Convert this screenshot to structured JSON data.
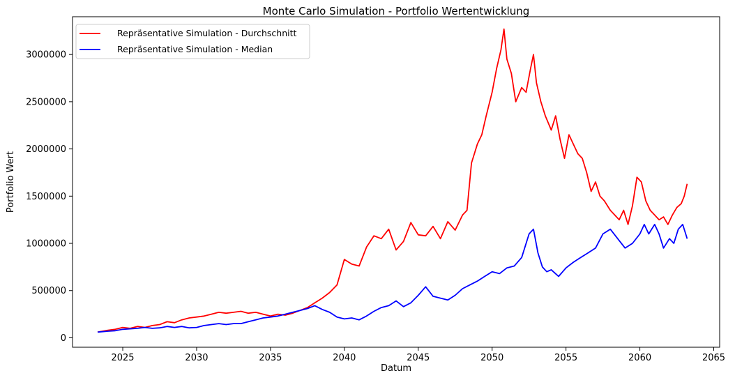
{
  "chart_data": {
    "type": "line",
    "title": "Monte Carlo Simulation - Portfolio Wertentwicklung",
    "xlabel": "Datum",
    "ylabel": "Portfolio Wert",
    "xlim": [
      2021.6,
      2065.4
    ],
    "ylim": [
      -100000,
      3400000
    ],
    "xticks": [
      2025,
      2030,
      2035,
      2040,
      2045,
      2050,
      2055,
      2060,
      2065
    ],
    "xtick_labels": [
      "2025",
      "2030",
      "2035",
      "2040",
      "2045",
      "2050",
      "2055",
      "2060",
      "2065"
    ],
    "yticks": [
      0,
      500000,
      1000000,
      1500000,
      2000000,
      2500000,
      3000000
    ],
    "ytick_labels": [
      "0",
      "500000",
      "1000000",
      "1500000",
      "2000000",
      "2500000",
      "3000000"
    ],
    "grid": false,
    "legend_position": "top-left",
    "series": [
      {
        "name": "Repräsentative Simulation - Durchschnitt",
        "color": "#ff0000",
        "x": [
          2023.3,
          2024.0,
          2024.5,
          2025.0,
          2025.5,
          2026.0,
          2026.5,
          2027.0,
          2027.5,
          2028.0,
          2028.5,
          2029.0,
          2029.5,
          2030.0,
          2030.5,
          2031.0,
          2031.5,
          2032.0,
          2032.5,
          2033.0,
          2033.5,
          2034.0,
          2034.5,
          2035.0,
          2035.5,
          2036.0,
          2036.5,
          2037.0,
          2037.5,
          2038.0,
          2038.5,
          2039.0,
          2039.5,
          2040.0,
          2040.5,
          2041.0,
          2041.5,
          2042.0,
          2042.5,
          2043.0,
          2043.5,
          2044.0,
          2044.5,
          2045.0,
          2045.5,
          2046.0,
          2046.5,
          2047.0,
          2047.5,
          2048.0,
          2048.3,
          2048.6,
          2049.0,
          2049.3,
          2049.6,
          2050.0,
          2050.3,
          2050.6,
          2050.8,
          2051.0,
          2051.3,
          2051.6,
          2052.0,
          2052.3,
          2052.6,
          2052.8,
          2053.0,
          2053.3,
          2053.6,
          2054.0,
          2054.3,
          2054.6,
          2054.9,
          2055.2,
          2055.5,
          2055.8,
          2056.1,
          2056.4,
          2056.7,
          2057.0,
          2057.3,
          2057.6,
          2058.0,
          2058.3,
          2058.6,
          2058.9,
          2059.2,
          2059.5,
          2059.8,
          2060.1,
          2060.4,
          2060.7,
          2061.0,
          2061.3,
          2061.6,
          2061.9,
          2062.2,
          2062.5,
          2062.8,
          2063.0,
          2063.2
        ],
        "y": [
          60000,
          80000,
          90000,
          110000,
          100000,
          120000,
          110000,
          130000,
          140000,
          170000,
          160000,
          190000,
          210000,
          220000,
          230000,
          250000,
          270000,
          260000,
          270000,
          280000,
          260000,
          270000,
          250000,
          230000,
          250000,
          240000,
          260000,
          290000,
          320000,
          370000,
          420000,
          480000,
          560000,
          830000,
          780000,
          760000,
          960000,
          1080000,
          1050000,
          1150000,
          930000,
          1020000,
          1220000,
          1090000,
          1080000,
          1180000,
          1050000,
          1230000,
          1140000,
          1300000,
          1350000,
          1850000,
          2050000,
          2150000,
          2350000,
          2600000,
          2850000,
          3050000,
          3270000,
          2950000,
          2800000,
          2500000,
          2650000,
          2600000,
          2850000,
          3000000,
          2700000,
          2500000,
          2350000,
          2200000,
          2350000,
          2100000,
          1900000,
          2150000,
          2050000,
          1950000,
          1900000,
          1750000,
          1550000,
          1650000,
          1500000,
          1450000,
          1350000,
          1300000,
          1250000,
          1350000,
          1200000,
          1400000,
          1700000,
          1650000,
          1450000,
          1350000,
          1300000,
          1250000,
          1280000,
          1200000,
          1300000,
          1380000,
          1420000,
          1500000,
          1630000
        ]
      },
      {
        "name": "Repräsentative Simulation - Median",
        "color": "#0000ff",
        "x": [
          2023.3,
          2024.0,
          2024.5,
          2025.0,
          2025.5,
          2026.0,
          2026.5,
          2027.0,
          2027.5,
          2028.0,
          2028.5,
          2029.0,
          2029.5,
          2030.0,
          2030.5,
          2031.0,
          2031.5,
          2032.0,
          2032.5,
          2033.0,
          2033.5,
          2034.0,
          2034.5,
          2035.0,
          2035.5,
          2036.0,
          2036.5,
          2037.0,
          2037.5,
          2038.0,
          2038.5,
          2039.0,
          2039.5,
          2040.0,
          2040.5,
          2041.0,
          2041.5,
          2042.0,
          2042.5,
          2043.0,
          2043.5,
          2044.0,
          2044.5,
          2045.0,
          2045.5,
          2046.0,
          2046.5,
          2047.0,
          2047.5,
          2048.0,
          2048.5,
          2049.0,
          2049.5,
          2050.0,
          2050.5,
          2051.0,
          2051.5,
          2052.0,
          2052.5,
          2052.8,
          2053.1,
          2053.4,
          2053.7,
          2054.0,
          2054.5,
          2055.0,
          2055.5,
          2056.0,
          2056.5,
          2057.0,
          2057.5,
          2058.0,
          2058.5,
          2059.0,
          2059.5,
          2060.0,
          2060.3,
          2060.6,
          2061.0,
          2061.3,
          2061.6,
          2062.0,
          2062.3,
          2062.6,
          2062.9,
          2063.1,
          2063.2
        ],
        "y": [
          60000,
          70000,
          75000,
          90000,
          95000,
          100000,
          110000,
          100000,
          105000,
          120000,
          110000,
          120000,
          105000,
          110000,
          130000,
          140000,
          150000,
          140000,
          150000,
          150000,
          170000,
          190000,
          210000,
          220000,
          230000,
          250000,
          270000,
          290000,
          310000,
          340000,
          300000,
          270000,
          220000,
          200000,
          210000,
          190000,
          230000,
          280000,
          320000,
          340000,
          390000,
          330000,
          370000,
          450000,
          540000,
          440000,
          420000,
          400000,
          450000,
          520000,
          560000,
          600000,
          650000,
          700000,
          680000,
          740000,
          760000,
          850000,
          1100000,
          1150000,
          900000,
          750000,
          700000,
          720000,
          650000,
          740000,
          800000,
          850000,
          900000,
          950000,
          1100000,
          1150000,
          1050000,
          950000,
          1000000,
          1100000,
          1200000,
          1100000,
          1200000,
          1100000,
          950000,
          1050000,
          1000000,
          1150000,
          1200000,
          1100000,
          1050000
        ]
      }
    ]
  }
}
